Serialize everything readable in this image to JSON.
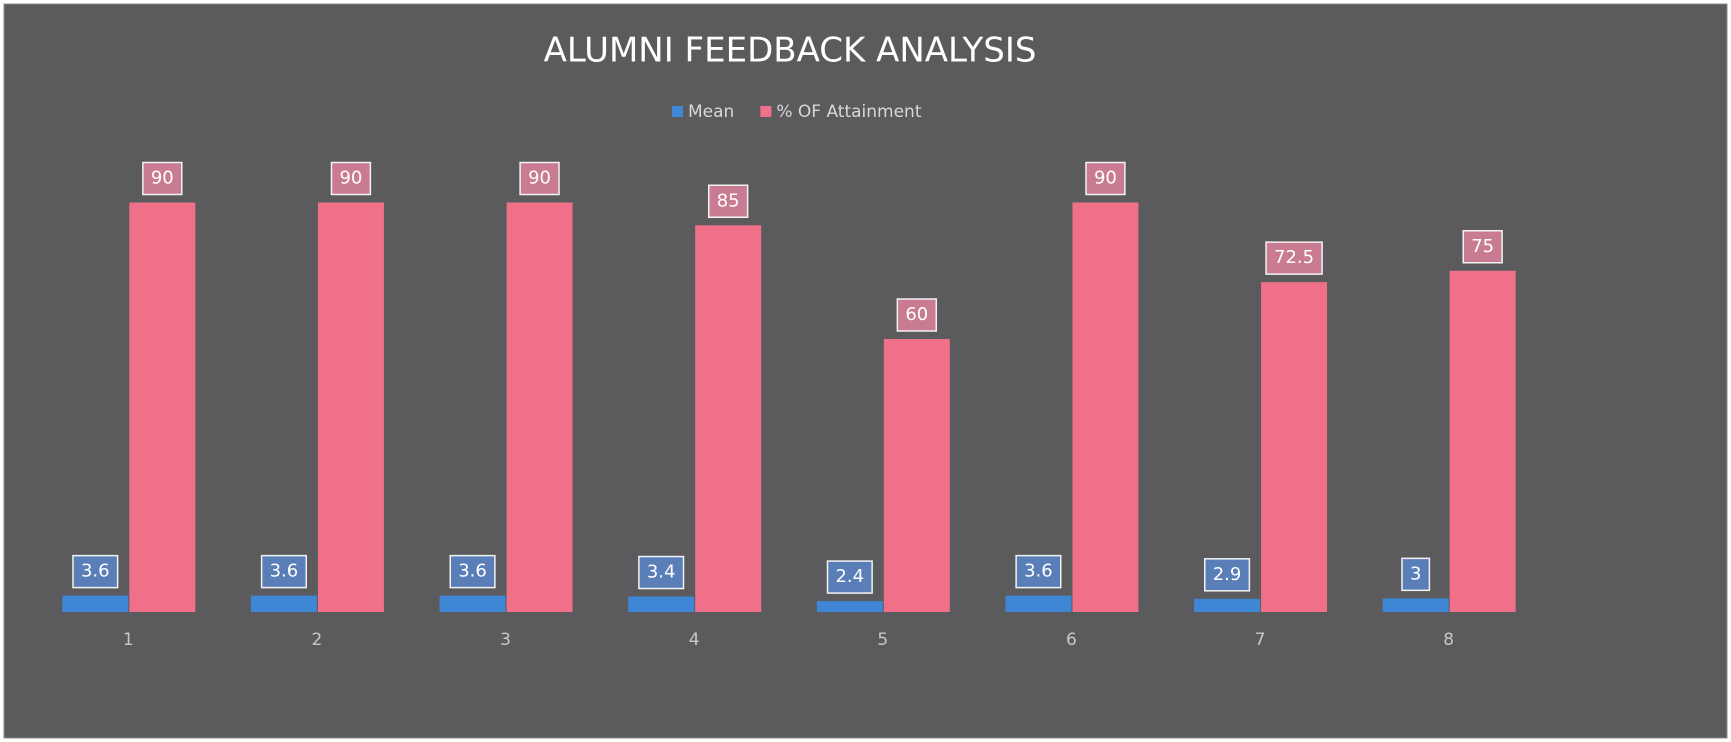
{
  "chart_data": {
    "type": "bar",
    "title": "ALUMNI FEEDBACK ANALYSIS",
    "categories": [
      "1",
      "2",
      "3",
      "4",
      "5",
      "6",
      "7",
      "8"
    ],
    "series": [
      {
        "name": "Mean",
        "color": "#3f86d4",
        "values": [
          3.6,
          3.6,
          3.6,
          3.4,
          2.4,
          3.6,
          2.9,
          3
        ]
      },
      {
        "name": "% OF Attainment",
        "color": "#f0708a",
        "values": [
          90,
          90,
          90,
          85,
          60,
          90,
          72.5,
          75
        ]
      }
    ],
    "ylim": [
      0,
      100
    ],
    "legend": "top"
  }
}
